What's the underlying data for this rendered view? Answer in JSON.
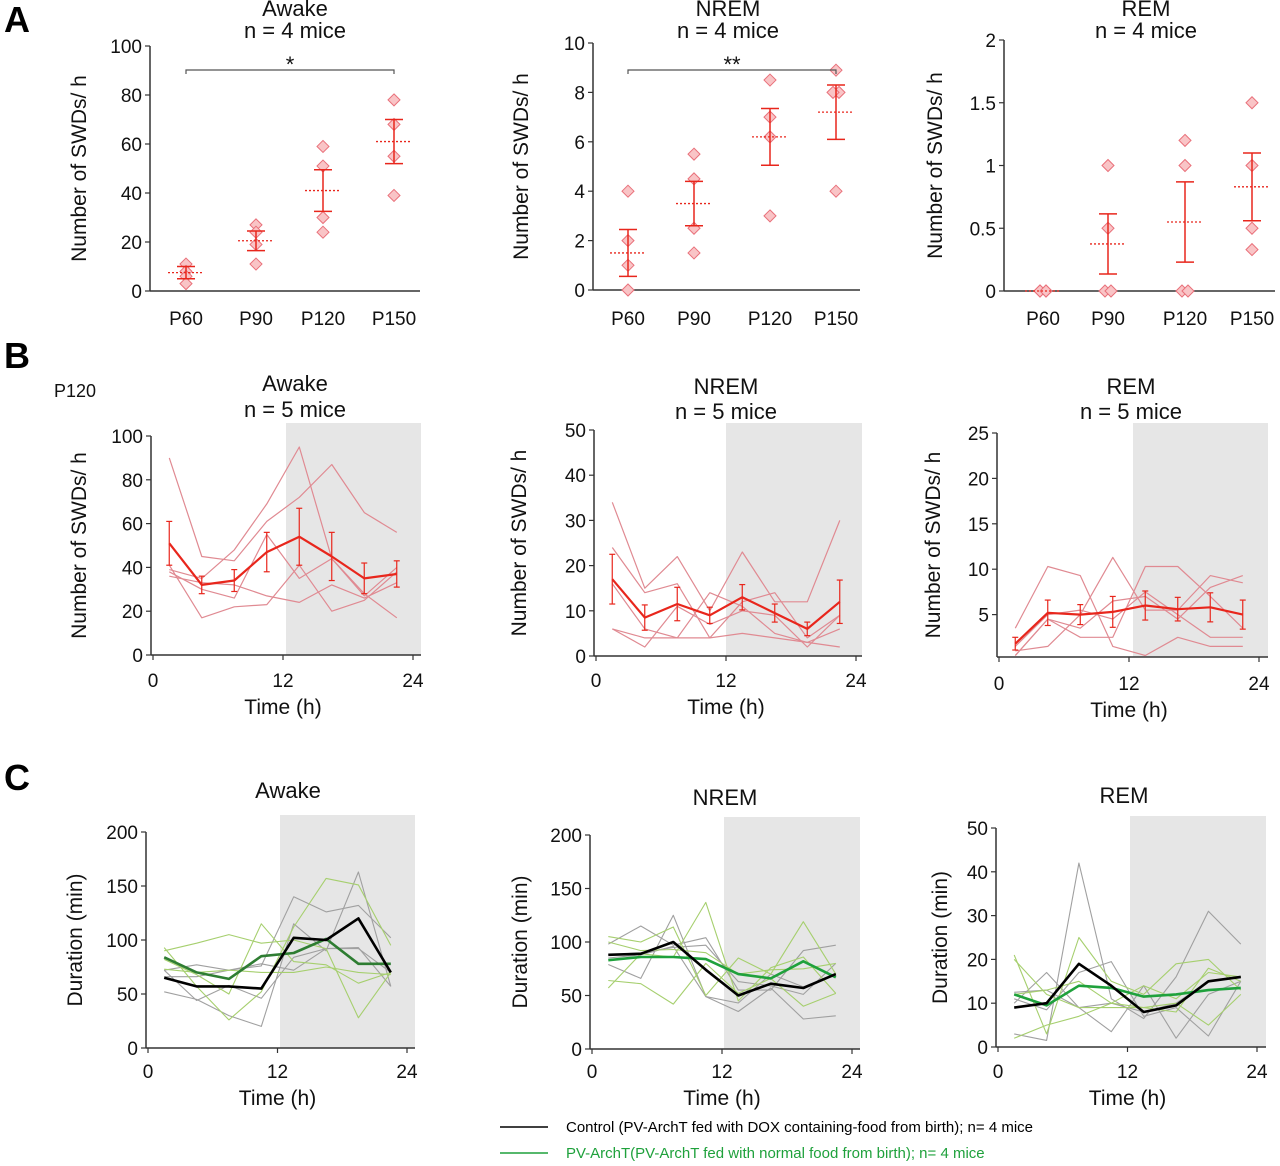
{
  "figure": {
    "panel_letters": [
      "A",
      "B",
      "C"
    ],
    "b_age_label": "P120",
    "colors": {
      "red": "#e8261c",
      "red_light": "#e08a92",
      "diamond_fill": "#f9c4c6",
      "diamond_edge": "#e9707a",
      "black": "#000000",
      "gray": "#a0a0a0",
      "green": "#1fa13c",
      "green_dark": "#2e7d32",
      "green_light": "#a6cf6e",
      "shade": "#e6e6e6"
    },
    "legend": [
      {
        "label": "Control (PV-ArchT fed with DOX containing-food from birth); n= 4 mice",
        "color": "#000000"
      },
      {
        "label": "PV-ArchT(PV-ArchT fed with normal food from birth); n= 4 mice",
        "color": "#1fa13c"
      }
    ]
  },
  "chart_data": [
    {
      "panel": "A",
      "type": "scatter",
      "title": [
        "Awake",
        "n = 4 mice"
      ],
      "ylabel": "Number of SWDs/ h",
      "xlabel": "",
      "categories": [
        "P60",
        "P90",
        "P120",
        "P150"
      ],
      "ylim": [
        0,
        100
      ],
      "yticks": [
        "0",
        "20",
        "40",
        "60",
        "80",
        "100"
      ],
      "ytick_values": [
        0,
        20,
        40,
        60,
        80,
        100
      ],
      "points": [
        [
          11,
          8,
          6,
          3
        ],
        [
          27,
          24,
          19,
          11
        ],
        [
          59,
          51,
          30,
          24
        ],
        [
          78,
          68,
          55,
          39
        ]
      ],
      "mean": [
        7.5,
        20.5,
        41,
        61
      ],
      "sem": [
        2.5,
        4,
        8.5,
        9
      ],
      "significance": {
        "from": "P60",
        "to": "P150",
        "label": "*"
      }
    },
    {
      "panel": "A",
      "type": "scatter",
      "title": [
        "NREM",
        "n = 4 mice"
      ],
      "ylabel": "Number of SWDs/ h",
      "xlabel": "",
      "categories": [
        "P60",
        "P90",
        "P120",
        "P150"
      ],
      "ylim": [
        0,
        10
      ],
      "yticks": [
        "0",
        "2",
        "4",
        "6",
        "8",
        "10"
      ],
      "ytick_values": [
        0,
        2,
        4,
        6,
        8,
        10
      ],
      "points": [
        [
          4,
          2,
          1,
          0
        ],
        [
          5.5,
          4.5,
          2.5,
          1.5
        ],
        [
          8.5,
          7,
          6.2,
          3
        ],
        [
          8.9,
          8,
          8,
          4
        ]
      ],
      "mean": [
        1.5,
        3.5,
        6.2,
        7.2
      ],
      "sem": [
        0.95,
        0.9,
        1.15,
        1.1
      ],
      "significance": {
        "from": "P60",
        "to": "P150",
        "label": "**"
      }
    },
    {
      "panel": "A",
      "type": "scatter",
      "title": [
        "REM",
        "n = 4 mice"
      ],
      "ylabel": "Number of SWDs/ h",
      "xlabel": "",
      "categories": [
        "P60",
        "P90",
        "P120",
        "P150"
      ],
      "ylim": [
        0,
        2
      ],
      "yticks": [
        "0",
        "0.5",
        "1",
        "1.5",
        "2"
      ],
      "ytick_values": [
        0,
        0.5,
        1,
        1.5,
        2
      ],
      "points": [
        [
          0,
          0,
          0,
          0
        ],
        [
          1,
          0.5,
          0,
          0
        ],
        [
          1.2,
          1,
          0,
          0
        ],
        [
          1.5,
          1,
          0.5,
          0.33
        ]
      ],
      "mean": [
        0,
        0.375,
        0.55,
        0.83
      ],
      "sem": [
        0,
        0.24,
        0.32,
        0.27
      ]
    },
    {
      "panel": "B",
      "type": "line",
      "title": [
        "Awake",
        "n = 5 mice"
      ],
      "ylabel": "Number of SWDs/ h",
      "xlabel": "Time (h)",
      "xlim": [
        0,
        24
      ],
      "xticks": [
        "0",
        "12",
        "24"
      ],
      "xtick_values": [
        0,
        12,
        24
      ],
      "ylim": [
        0,
        100
      ],
      "yticks": [
        "0",
        "20",
        "40",
        "60",
        "80",
        "100"
      ],
      "ytick_values": [
        0,
        20,
        40,
        60,
        80,
        100
      ],
      "dark_period": [
        12,
        24
      ],
      "x": [
        1.5,
        4.5,
        7.5,
        10.5,
        13.5,
        16.5,
        19.5,
        22.5
      ],
      "individuals": [
        [
          90,
          45,
          43,
          61,
          72,
          87,
          65,
          56
        ],
        [
          39,
          35,
          48,
          69,
          95,
          44,
          28,
          17
        ],
        [
          36,
          33,
          32,
          27,
          24,
          32,
          26,
          33
        ],
        [
          41,
          17,
          22,
          23,
          41,
          20,
          25,
          38
        ],
        [
          38,
          30,
          26,
          55,
          35,
          44,
          27,
          40
        ]
      ],
      "mean": [
        51,
        32,
        34,
        47,
        54,
        45,
        35,
        37
      ],
      "sem": [
        10,
        4,
        5,
        9,
        13,
        11,
        7,
        6
      ]
    },
    {
      "panel": "B",
      "type": "line",
      "title": [
        "NREM",
        "n = 5 mice"
      ],
      "ylabel": "Number of SWDs/ h",
      "xlabel": "Time (h)",
      "xlim": [
        0,
        24
      ],
      "xticks": [
        "0",
        "12",
        "24"
      ],
      "xtick_values": [
        0,
        12,
        24
      ],
      "ylim": [
        0,
        50
      ],
      "yticks": [
        "0",
        "10",
        "20",
        "30",
        "40",
        "50"
      ],
      "ytick_values": [
        0,
        10,
        20,
        30,
        40,
        50
      ],
      "dark_period": [
        12,
        24
      ],
      "x": [
        1.5,
        4.5,
        7.5,
        10.5,
        13.5,
        16.5,
        19.5,
        22.5
      ],
      "individuals": [
        [
          34,
          15,
          22,
          10,
          23,
          12,
          12,
          30
        ],
        [
          24,
          14,
          16,
          4,
          12,
          14,
          4,
          9
        ],
        [
          16,
          6,
          4,
          14,
          11,
          5,
          3,
          6
        ],
        [
          6,
          4,
          4,
          4,
          5,
          4,
          3,
          2
        ],
        [
          6,
          2,
          11,
          7,
          10,
          9,
          2,
          9
        ]
      ],
      "mean": [
        17,
        8.5,
        11.5,
        9,
        13,
        9.5,
        6,
        12
      ],
      "sem": [
        5.5,
        2.8,
        3.7,
        1.8,
        2.8,
        2,
        1.5,
        4.8
      ]
    },
    {
      "panel": "B",
      "type": "line",
      "title": [
        "REM",
        "n = 5 mice"
      ],
      "ylabel": "Number of SWDs/ h",
      "xlabel": "Time (h)",
      "xlim": [
        0,
        24
      ],
      "xticks": [
        "0",
        "12",
        "24"
      ],
      "xtick_values": [
        0,
        12,
        24
      ],
      "ylim": [
        0,
        25
      ],
      "yticks": [
        "5",
        "10",
        "15",
        "20",
        "25"
      ],
      "ytick_values": [
        5,
        10,
        15,
        20,
        25
      ],
      "dark_period": [
        12,
        24
      ],
      "x": [
        1.5,
        4.5,
        7.5,
        10.5,
        13.5,
        16.5,
        19.5,
        22.5
      ],
      "individuals": [
        [
          3.5,
          10.3,
          9.3,
          1.5,
          0.5,
          2.5,
          1.5,
          1.5
        ],
        [
          0.5,
          4.5,
          2.5,
          2.5,
          10.3,
          10.3,
          7,
          3.5
        ],
        [
          1,
          1.5,
          5,
          11.3,
          5.5,
          5.5,
          9.3,
          8.5
        ],
        [
          0.5,
          4.5,
          3.5,
          6.5,
          7,
          4.5,
          8,
          9.3
        ],
        [
          1.5,
          5,
          5.5,
          4.5,
          7.5,
          5,
          2.5,
          2.5
        ]
      ],
      "mean": [
        1.8,
        5.2,
        5,
        5.3,
        6,
        5.6,
        5.8,
        5
      ],
      "sem": [
        0.7,
        1.4,
        1.1,
        1.7,
        1.6,
        1.3,
        1.6,
        1.6
      ]
    },
    {
      "panel": "C",
      "type": "line",
      "title": [
        "Awake"
      ],
      "ylabel": "Duration (min)",
      "xlabel": "Time (h)",
      "xlim": [
        0,
        24
      ],
      "xticks": [
        "0",
        "12",
        "24"
      ],
      "xtick_values": [
        0,
        12,
        24
      ],
      "ylim": [
        0,
        200
      ],
      "yticks": [
        "0",
        "50",
        "100",
        "150",
        "200"
      ],
      "ytick_values": [
        0,
        50,
        100,
        150,
        200
      ],
      "dark_period": [
        12,
        24
      ],
      "x": [
        1.5,
        4.5,
        7.5,
        10.5,
        13.5,
        16.5,
        19.5,
        22.5
      ],
      "series": [
        {
          "name": "Control",
          "role": "mean",
          "values": [
            65,
            57,
            57,
            55,
            102,
            100,
            120,
            70
          ]
        },
        {
          "name": "PV-ArchT",
          "role": "mean",
          "values": [
            84,
            70,
            64,
            85,
            88,
            101,
            78,
            78
          ]
        }
      ],
      "control_individuals": [
        [
          52,
          45,
          30,
          20,
          115,
          90,
          163,
          57
        ],
        [
          72,
          77,
          72,
          76,
          140,
          126,
          132,
          102
        ],
        [
          72,
          44,
          58,
          46,
          84,
          92,
          93,
          57
        ],
        [
          66,
          66,
          72,
          78,
          72,
          92,
          92,
          70
        ]
      ],
      "archt_individuals": [
        [
          93,
          57,
          26,
          52,
          112,
          157,
          151,
          95
        ],
        [
          90,
          97,
          105,
          97,
          100,
          92,
          28,
          70
        ],
        [
          82,
          68,
          50,
          115,
          80,
          77,
          60,
          70
        ],
        [
          73,
          70,
          72,
          70,
          70,
          75,
          70,
          68
        ]
      ]
    },
    {
      "panel": "C",
      "type": "line",
      "title": [
        "NREM"
      ],
      "ylabel": "Duration (min)",
      "xlabel": "Time (h)",
      "xlim": [
        0,
        24
      ],
      "xticks": [
        "0",
        "12",
        "24"
      ],
      "xtick_values": [
        0,
        12,
        24
      ],
      "ylim": [
        0,
        200
      ],
      "yticks": [
        "0",
        "50",
        "100",
        "150",
        "200"
      ],
      "ytick_values": [
        0,
        50,
        100,
        150,
        200
      ],
      "dark_period": [
        12,
        24
      ],
      "x": [
        1.5,
        4.5,
        7.5,
        10.5,
        13.5,
        16.5,
        19.5,
        22.5
      ],
      "series": [
        {
          "name": "Control",
          "role": "mean",
          "values": [
            88,
            89,
            100,
            74,
            50,
            61,
            57,
            70
          ]
        },
        {
          "name": "PV-ArchT",
          "role": "mean",
          "values": [
            83,
            86,
            86,
            84,
            70,
            66,
            82,
            67
          ]
        }
      ],
      "control_individuals": [
        [
          98,
          115,
          97,
          104,
          55,
          55,
          92,
          97
        ],
        [
          79,
          66,
          125,
          49,
          35,
          57,
          28,
          31
        ],
        [
          88,
          90,
          95,
          97,
          63,
          59,
          51,
          80
        ],
        [
          85,
          88,
          96,
          49,
          43,
          70,
          58,
          70
        ]
      ],
      "archt_individuals": [
        [
          105,
          100,
          114,
          50,
          85,
          70,
          119,
          70
        ],
        [
          57,
          89,
          86,
          137,
          45,
          76,
          86,
          52
        ],
        [
          64,
          61,
          42,
          80,
          52,
          66,
          40,
          52
        ],
        [
          100,
          92,
          93,
          90,
          70,
          74,
          75,
          80
        ]
      ]
    },
    {
      "panel": "C",
      "type": "line",
      "title": [
        "REM"
      ],
      "ylabel": "Duration (min)",
      "xlabel": "Time (h)",
      "xlim": [
        0,
        24
      ],
      "xticks": [
        "0",
        "12",
        "24"
      ],
      "xtick_values": [
        0,
        12,
        24
      ],
      "ylim": [
        0,
        50
      ],
      "yticks": [
        "0",
        "10",
        "20",
        "30",
        "40",
        "50"
      ],
      "ytick_values": [
        0,
        10,
        20,
        30,
        40,
        50
      ],
      "dark_period": [
        12,
        24
      ],
      "x": [
        1.5,
        4.5,
        7.5,
        10.5,
        13.5,
        16.5,
        19.5,
        22.5
      ],
      "series": [
        {
          "name": "Control",
          "role": "mean",
          "values": [
            9,
            10,
            19,
            14,
            8,
            9.5,
            15,
            16
          ]
        },
        {
          "name": "PV-ArchT",
          "role": "mean",
          "values": [
            12,
            9.5,
            14,
            13.5,
            11.5,
            12,
            13,
            13.5
          ]
        }
      ],
      "control_individuals": [
        [
          3,
          1.5,
          42,
          11,
          6.5,
          16,
          31,
          23.5
        ],
        [
          12.5,
          13,
          9,
          3.5,
          14,
          2,
          12,
          15
        ],
        [
          11,
          8.5,
          17,
          19.5,
          7,
          9,
          2.5,
          15
        ],
        [
          10,
          17,
          9,
          10,
          8,
          10,
          15,
          16
        ]
      ],
      "archt_individuals": [
        [
          21,
          3,
          25,
          15,
          12,
          19,
          20,
          13
        ],
        [
          2,
          5,
          7,
          10,
          9,
          8,
          18,
          15
        ],
        [
          20,
          12,
          9,
          9,
          9,
          10,
          5,
          12
        ],
        [
          12,
          13,
          15,
          10,
          14,
          11,
          17,
          16
        ]
      ]
    }
  ]
}
